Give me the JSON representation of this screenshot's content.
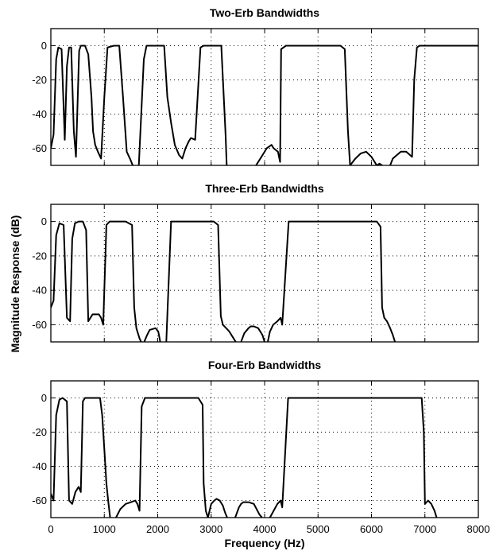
{
  "figure": {
    "ylabel": "Magnitude Response (dB)",
    "xlabel": "Frequency (Hz)"
  },
  "chart_data": [
    {
      "type": "line",
      "title": "Two-Erb Bandwidths",
      "xlim": [
        0,
        8000
      ],
      "ylim": [
        -70,
        10
      ],
      "xticks": [
        0,
        1000,
        2000,
        3000,
        4000,
        5000,
        6000,
        7000,
        8000
      ],
      "yticks": [
        0,
        -20,
        -40,
        -60
      ],
      "ytick_labels": [
        "0",
        "-20",
        "-40",
        "-60"
      ],
      "grid": true,
      "x": [
        0,
        50,
        100,
        140,
        200,
        260,
        300,
        340,
        380,
        430,
        470,
        530,
        560,
        640,
        700,
        760,
        790,
        830,
        880,
        940,
        1000,
        1060,
        1180,
        1280,
        1350,
        1420,
        1480,
        1560,
        1640,
        1740,
        1790,
        1830,
        2120,
        2180,
        2250,
        2320,
        2400,
        2460,
        2520,
        2580,
        2620,
        2700,
        2800,
        2860,
        3190,
        3270,
        3290,
        3400,
        3500,
        3600,
        3700,
        3760,
        3840,
        3940,
        4040,
        4130,
        4170,
        4250,
        4290,
        4310,
        4400,
        5420,
        5500,
        5560,
        5600,
        5700,
        5800,
        5900,
        6000,
        6100,
        6150,
        6200,
        6280,
        6350,
        6400,
        6550,
        6650,
        6760,
        6800,
        6850,
        6900,
        7000,
        8000
      ],
      "values": [
        -60,
        -52,
        -8,
        -1,
        -2,
        -55,
        -12,
        -1,
        -1,
        -50,
        -65,
        -3,
        0,
        0,
        -5,
        -30,
        -50,
        -58,
        -62,
        -66,
        -30,
        -1,
        0,
        0,
        -30,
        -62,
        -66,
        -72,
        -74,
        -8,
        0,
        0,
        0,
        -30,
        -45,
        -58,
        -64,
        -66,
        -60,
        -56,
        -54,
        -55,
        -1,
        0,
        0,
        -52,
        -70,
        -72,
        -74,
        -76,
        -74,
        -72,
        -70,
        -65,
        -60,
        -58,
        -60,
        -62,
        -68,
        -2,
        0,
        0,
        -2,
        -50,
        -70,
        -66,
        -63,
        -62,
        -65,
        -70,
        -69,
        -70,
        -72,
        -70,
        -66,
        -62,
        -62,
        -65,
        -20,
        -1,
        0,
        0,
        0
      ]
    },
    {
      "type": "line",
      "title": "Three-Erb Bandwidths",
      "xlim": [
        0,
        8000
      ],
      "ylim": [
        -70,
        10
      ],
      "xticks": [
        0,
        1000,
        2000,
        3000,
        4000,
        5000,
        6000,
        7000,
        8000
      ],
      "yticks": [
        0,
        -20,
        -40,
        -60
      ],
      "ytick_labels": [
        "0",
        "-20",
        "-40",
        "-60"
      ],
      "grid": true,
      "x": [
        0,
        50,
        100,
        160,
        240,
        300,
        360,
        400,
        450,
        520,
        600,
        660,
        700,
        740,
        780,
        830,
        900,
        940,
        980,
        1040,
        1100,
        1400,
        1520,
        1560,
        1600,
        1660,
        1720,
        1800,
        1850,
        1960,
        2010,
        2060,
        2120,
        2150,
        2250,
        3050,
        3130,
        3180,
        3220,
        3280,
        3340,
        3420,
        3500,
        3560,
        3620,
        3700,
        3740,
        3800,
        3880,
        3960,
        4020,
        4060,
        4100,
        4160,
        4240,
        4300,
        4330,
        4450,
        6100,
        6170,
        6200,
        6240,
        6290,
        6350,
        6400,
        6440
      ],
      "values": [
        -50,
        -46,
        -8,
        -1,
        -2,
        -56,
        -58,
        -10,
        -1,
        0,
        0,
        -5,
        -58,
        -56,
        -54,
        -54,
        -54,
        -56,
        -60,
        -2,
        0,
        0,
        -2,
        -50,
        -62,
        -68,
        -72,
        -66,
        -63,
        -62,
        -64,
        -72,
        -75,
        -78,
        0,
        0,
        -2,
        -55,
        -60,
        -62,
        -64,
        -68,
        -72,
        -70,
        -65,
        -62,
        -61,
        -61,
        -62,
        -66,
        -72,
        -70,
        -64,
        -60,
        -58,
        -56,
        -60,
        0,
        0,
        -3,
        -50,
        -56,
        -58,
        -62,
        -66,
        -70
      ]
    },
    {
      "type": "line",
      "title": "Four-Erb Bandwidths",
      "xlim": [
        0,
        8000
      ],
      "ylim": [
        -70,
        10
      ],
      "xticks": [
        0,
        1000,
        2000,
        3000,
        4000,
        5000,
        6000,
        7000,
        8000
      ],
      "yticks": [
        0,
        -20,
        -40,
        -60
      ],
      "ytick_labels": [
        "0",
        "-20",
        "-40",
        "-60"
      ],
      "grid": true,
      "x": [
        0,
        50,
        100,
        160,
        220,
        300,
        340,
        400,
        460,
        520,
        560,
        600,
        640,
        920,
        960,
        1000,
        1040,
        1080,
        1110,
        1160,
        1220,
        1300,
        1400,
        1500,
        1580,
        1620,
        1660,
        1700,
        1760,
        2760,
        2840,
        2860,
        2900,
        2940,
        3000,
        3060,
        3100,
        3160,
        3220,
        3260,
        3300,
        3350,
        3400,
        3450,
        3520,
        3560,
        3600,
        3700,
        3800,
        3900,
        4000,
        4100,
        4240,
        4300,
        4330,
        4440,
        6940,
        6980,
        7000,
        7060,
        7120,
        7180,
        7220,
        7260
      ],
      "values": [
        -56,
        -60,
        -10,
        -1,
        0,
        -2,
        -60,
        -62,
        -55,
        -52,
        -55,
        -2,
        0,
        0,
        -10,
        -30,
        -50,
        -62,
        -70,
        -74,
        -70,
        -65,
        -62,
        -61,
        -60,
        -62,
        -66,
        -5,
        0,
        0,
        -4,
        -50,
        -66,
        -70,
        -62,
        -60,
        -59,
        -60,
        -63,
        -67,
        -70,
        -72,
        -72,
        -70,
        -64,
        -62,
        -61,
        -61,
        -62,
        -68,
        -72,
        -70,
        -62,
        -60,
        -64,
        0,
        0,
        -20,
        -62,
        -60,
        -62,
        -66,
        -70,
        -75
      ]
    }
  ]
}
